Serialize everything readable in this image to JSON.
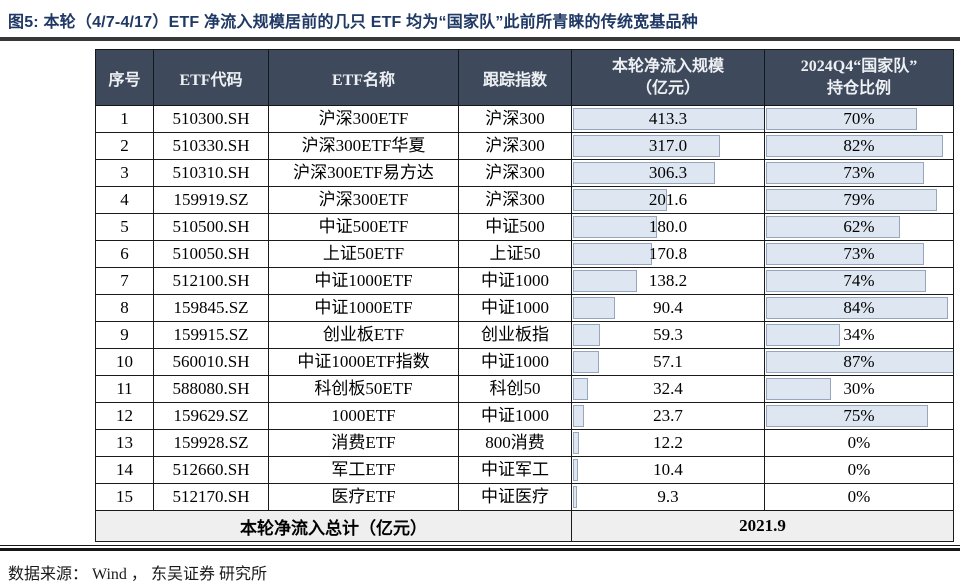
{
  "title": "图5:  本轮（4/7-4/17）ETF 净流入规模居前的几只 ETF 均为“国家队”此前所青睐的传统宽基品种",
  "table": {
    "columns": [
      {
        "label": "序号"
      },
      {
        "label": "ETF代码"
      },
      {
        "label": "ETF名称"
      },
      {
        "label": "跟踪指数"
      },
      {
        "label": "本轮净流入规模",
        "label2": "（亿元）"
      },
      {
        "label": "2024Q4“国家队”",
        "label2": "持仓比例"
      }
    ],
    "rows": [
      {
        "no": "1",
        "code": "510300.SH",
        "name": "沪深300ETF",
        "index": "沪深300",
        "inflow": "413.3",
        "pct": "70%"
      },
      {
        "no": "2",
        "code": "510330.SH",
        "name": "沪深300ETF华夏",
        "index": "沪深300",
        "inflow": "317.0",
        "pct": "82%"
      },
      {
        "no": "3",
        "code": "510310.SH",
        "name": "沪深300ETF易方达",
        "index": "沪深300",
        "inflow": "306.3",
        "pct": "73%"
      },
      {
        "no": "4",
        "code": "159919.SZ",
        "name": "沪深300ETF",
        "index": "沪深300",
        "inflow": "201.6",
        "pct": "79%"
      },
      {
        "no": "5",
        "code": "510500.SH",
        "name": "中证500ETF",
        "index": "中证500",
        "inflow": "180.0",
        "pct": "62%"
      },
      {
        "no": "6",
        "code": "510050.SH",
        "name": "上证50ETF",
        "index": "上证50",
        "inflow": "170.8",
        "pct": "73%"
      },
      {
        "no": "7",
        "code": "512100.SH",
        "name": "中证1000ETF",
        "index": "中证1000",
        "inflow": "138.2",
        "pct": "74%"
      },
      {
        "no": "8",
        "code": "159845.SZ",
        "name": "中证1000ETF",
        "index": "中证1000",
        "inflow": "90.4",
        "pct": "84%"
      },
      {
        "no": "9",
        "code": "159915.SZ",
        "name": "创业板ETF",
        "index": "创业板指",
        "inflow": "59.3",
        "pct": "34%"
      },
      {
        "no": "10",
        "code": "560010.SH",
        "name": "中证1000ETF指数",
        "index": "中证1000",
        "inflow": "57.1",
        "pct": "87%"
      },
      {
        "no": "11",
        "code": "588080.SH",
        "name": "科创板50ETF",
        "index": "科创50",
        "inflow": "32.4",
        "pct": "30%"
      },
      {
        "no": "12",
        "code": "159629.SZ",
        "name": "1000ETF",
        "index": "中证1000",
        "inflow": "23.7",
        "pct": "75%"
      },
      {
        "no": "13",
        "code": "159928.SZ",
        "name": "消费ETF",
        "index": "800消费",
        "inflow": "12.2",
        "pct": "0%"
      },
      {
        "no": "14",
        "code": "512660.SH",
        "name": "军工ETF",
        "index": "中证军工",
        "inflow": "10.4",
        "pct": "0%"
      },
      {
        "no": "15",
        "code": "512170.SH",
        "name": "医疗ETF",
        "index": "中证医疗",
        "inflow": "9.3",
        "pct": "0%"
      }
    ],
    "total": {
      "label": "本轮净流入总计（亿元）",
      "value": "2021.9"
    }
  },
  "colors": {
    "title_navy": "#1f3864",
    "header_bg": "#3e4a5c",
    "databar_fill": "#dde6f1",
    "databar_border": "#96a7bd",
    "total_row_bg": "#efefef",
    "link_underline_teal": "#2fada8"
  },
  "footer": {
    "prefix": "数据来源：",
    "source1": "Wind",
    "separator": "，",
    "source2": "东吴证券",
    "suffix": "研究所"
  }
}
